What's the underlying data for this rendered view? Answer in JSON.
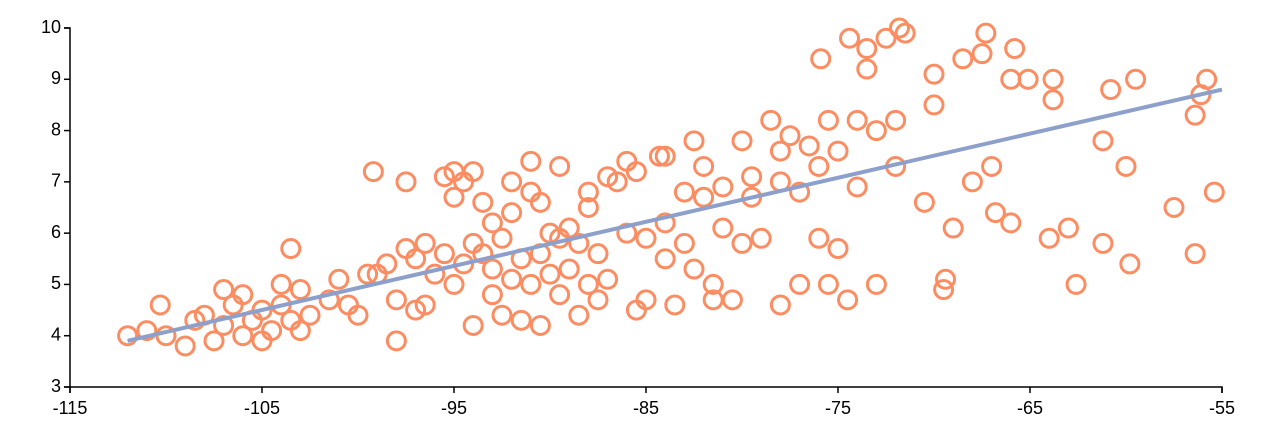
{
  "chart_data": {
    "type": "scatter",
    "color": "#fc8d62",
    "x": [
      -112,
      -111,
      -110.3,
      -110,
      -109,
      -108.5,
      -108,
      -107.5,
      -107,
      -107,
      -106.5,
      -106,
      -106,
      -105.5,
      -105,
      -105,
      -104.5,
      -104,
      -104,
      -103.5,
      -103,
      -103,
      -102.5,
      -101.5,
      -101,
      -100.5,
      -100,
      -103.5,
      -99.5,
      -99,
      -99.2,
      -98.5,
      -98,
      -98,
      -97.5,
      -97.5,
      -97,
      -97,
      -96.5,
      -96.5,
      -96,
      -95.5,
      -95.5,
      -95,
      -95,
      -95,
      -94.5,
      -94.5,
      -94,
      -94,
      -94,
      -93.5,
      -93.5,
      -93,
      -93,
      -93,
      -92.5,
      -92.5,
      -92,
      -92,
      -92,
      -91.5,
      -91.5,
      -91,
      -91,
      -91,
      -90.5,
      -90.5,
      -90.5,
      -90,
      -90,
      -89.5,
      -89.5,
      -89.5,
      -89,
      -89,
      -88.5,
      -88.5,
      -88,
      -88,
      -88,
      -87.5,
      -87.5,
      -87,
      -87,
      -86.5,
      -86,
      -86,
      -85.5,
      -85.5,
      -85,
      -85,
      -84.3,
      -84,
      -84,
      -84,
      -83.5,
      -83,
      -83,
      -82.5,
      -82.5,
      -82,
      -82,
      -81.5,
      -81.5,
      -81,
      -81,
      -80.5,
      -80,
      -80,
      -79.5,
      -79.5,
      -79,
      -78.5,
      -78,
      -78,
      -78,
      -77.5,
      -77,
      -77,
      -76.5,
      -76,
      -76,
      -75.9,
      -75.5,
      -75.5,
      -75,
      -75,
      -74.4,
      -74.5,
      -74,
      -74,
      -73.5,
      -73.5,
      -73,
      -73,
      -72.5,
      -72,
      -72,
      -71.8,
      -71.5,
      -70.5,
      -70,
      -70,
      -69.4,
      -69.5,
      -69,
      -68.5,
      -68,
      -67.5,
      -67.3,
      -67,
      -66.8,
      -66,
      -66,
      -65.8,
      -65.1,
      -64,
      -63.8,
      -63.8,
      -63,
      -62.6,
      -61.2,
      -61.2,
      -60.8,
      -60,
      -59.8,
      -59.5,
      -57.5,
      -56.4,
      -56.4,
      -56.1,
      -55.8,
      -55.4
    ],
    "values": [
      4.0,
      4.1,
      4.6,
      4.0,
      3.8,
      4.3,
      4.4,
      3.9,
      4.9,
      4.2,
      4.6,
      4.0,
      4.8,
      4.3,
      3.9,
      4.5,
      4.1,
      4.6,
      5.0,
      4.3,
      4.1,
      4.9,
      4.4,
      4.7,
      5.1,
      4.6,
      4.4,
      5.7,
      5.2,
      5.2,
      7.2,
      5.4,
      3.9,
      4.7,
      7.0,
      5.7,
      4.5,
      5.5,
      5.8,
      4.6,
      5.2,
      7.1,
      5.6,
      7.2,
      6.7,
      5.0,
      7.0,
      5.4,
      7.2,
      4.2,
      5.8,
      6.6,
      5.6,
      4.8,
      6.2,
      5.3,
      5.9,
      4.4,
      7.0,
      5.1,
      6.4,
      5.5,
      4.3,
      6.8,
      5.0,
      7.4,
      6.6,
      5.6,
      4.2,
      5.2,
      6.0,
      7.3,
      5.9,
      4.8,
      6.1,
      5.3,
      4.4,
      5.8,
      6.5,
      6.8,
      5.0,
      4.7,
      5.6,
      5.1,
      7.1,
      7.0,
      7.4,
      6.0,
      4.5,
      7.2,
      4.7,
      5.9,
      7.5,
      7.5,
      6.2,
      5.5,
      4.6,
      6.8,
      5.8,
      7.8,
      5.3,
      7.3,
      6.7,
      4.7,
      5.0,
      6.9,
      6.1,
      4.7,
      7.8,
      5.8,
      7.1,
      6.7,
      5.9,
      8.2,
      7.6,
      4.6,
      7.0,
      7.9,
      6.8,
      5.0,
      7.7,
      5.9,
      7.3,
      9.4,
      5.0,
      8.2,
      7.6,
      5.7,
      9.8,
      4.7,
      8.2,
      6.9,
      9.6,
      9.2,
      8.0,
      5.0,
      9.8,
      7.3,
      8.2,
      10.0,
      9.9,
      6.6,
      9.1,
      8.5,
      5.1,
      4.9,
      6.1,
      9.4,
      7.0,
      9.5,
      9.9,
      7.3,
      6.4,
      6.2,
      9.0,
      9.6,
      9.0,
      5.9,
      9.0,
      8.6,
      6.1,
      5.0,
      7.8,
      5.8,
      8.8,
      7.3,
      5.4,
      9.0,
      6.5,
      5.6,
      8.3,
      8.7,
      9.0,
      6.8
    ],
    "trend": {
      "color": "#8da0cb",
      "x": [
        -112,
        -55
      ],
      "values": [
        3.9,
        8.8
      ]
    },
    "xlim": [
      -115,
      -55
    ],
    "xticks": [
      -115,
      -105,
      -95,
      -85,
      -75,
      -65,
      -55
    ],
    "ylim": [
      3,
      10
    ],
    "yticks": [
      3,
      4,
      5,
      6,
      7,
      8,
      9,
      10
    ]
  }
}
